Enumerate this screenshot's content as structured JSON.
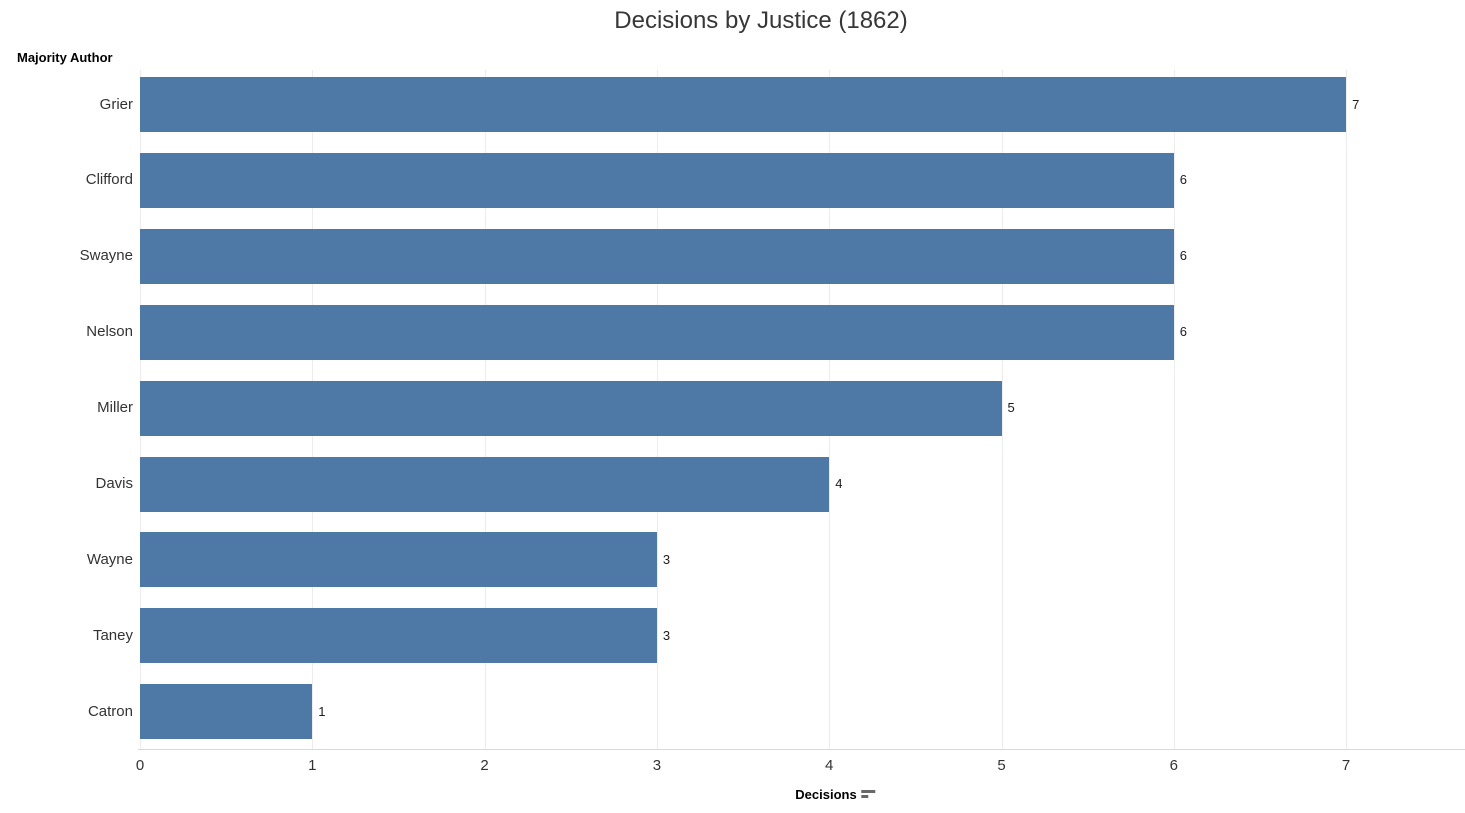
{
  "title": "Decisions by Justice (1862)",
  "y_axis": {
    "label": "Majority Author"
  },
  "x_axis": {
    "label": "Decisions",
    "sort_icon": "sort-descending-icon",
    "ticks": [
      0,
      1,
      2,
      3,
      4,
      5,
      6,
      7
    ]
  },
  "colors": {
    "bar": "#4e79a7",
    "title_text": "#373737",
    "label_text": "#333333",
    "gridline": "#ececec",
    "axis_line": "#d9d9d9",
    "sort_icon": "#696969"
  },
  "chart_data": {
    "type": "bar",
    "orientation": "horizontal",
    "title": "Decisions by Justice (1862)",
    "xlabel": "Decisions",
    "ylabel": "Majority Author",
    "categories": [
      "Grier",
      "Clifford",
      "Swayne",
      "Nelson",
      "Miller",
      "Davis",
      "Wayne",
      "Taney",
      "Catron"
    ],
    "values": [
      7,
      6,
      6,
      6,
      5,
      4,
      3,
      3,
      1
    ],
    "value_labels": [
      "7",
      "6",
      "6",
      "6",
      "5",
      "4",
      "3",
      "3",
      "1"
    ],
    "xlim": [
      0,
      7.7
    ],
    "x_ticks": [
      0,
      1,
      2,
      3,
      4,
      5,
      6,
      7
    ],
    "grid": true,
    "legend": false,
    "bar_color": "#4e79a7",
    "sort": "descending"
  }
}
